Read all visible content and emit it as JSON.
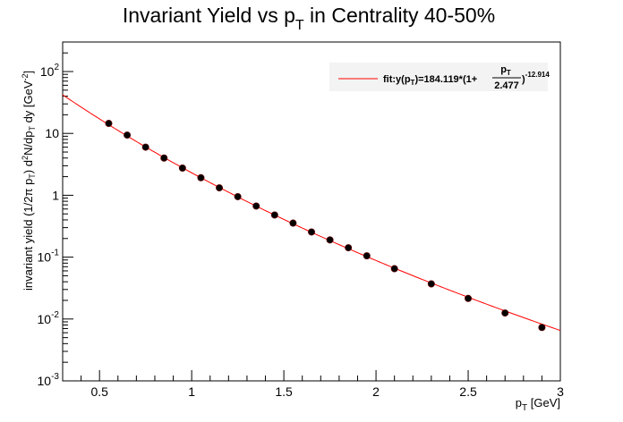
{
  "chart_data": {
    "type": "scatter",
    "title": "Invariant Yield vs p",
    "title_sub": "T",
    "title_tail": " in Centrality 40-50%",
    "xlabel": "p",
    "xlabel_sub": "T",
    "xlabel_tail": " [GeV]",
    "ylabel": "invariant yield (1/2π p",
    "ylabel_sub1": "T",
    "ylabel_mid1": ") d",
    "ylabel_sup1": "2",
    "ylabel_mid2": "N/dp",
    "ylabel_sub2": "T",
    "ylabel_tail": " dy [GeV",
    "ylabel_sup2": "-2",
    "ylabel_end": "]",
    "xlim": [
      0.3,
      3.0
    ],
    "ylim": [
      0.001,
      300
    ],
    "y_scale": "log",
    "x_ticks": [
      {
        "value": 0.5,
        "label": "0.5"
      },
      {
        "value": 1.0,
        "label": "1"
      },
      {
        "value": 1.5,
        "label": "1.5"
      },
      {
        "value": 2.0,
        "label": "2"
      },
      {
        "value": 2.5,
        "label": "2.5"
      },
      {
        "value": 3.0,
        "label": "3"
      }
    ],
    "y_ticks": [
      {
        "value": 0.001,
        "base": "10",
        "exp": "-3"
      },
      {
        "value": 0.01,
        "base": "10",
        "exp": "-2"
      },
      {
        "value": 0.1,
        "base": "10",
        "exp": "-1"
      },
      {
        "value": 1,
        "base": "1",
        "exp": ""
      },
      {
        "value": 10,
        "base": "10",
        "exp": ""
      },
      {
        "value": 100,
        "base": "10",
        "exp": "2"
      }
    ],
    "series": [
      {
        "color": "#000000",
        "x": [
          0.55,
          0.65,
          0.75,
          0.85,
          0.95,
          1.05,
          1.15,
          1.25,
          1.35,
          1.45,
          1.55,
          1.65,
          1.75,
          1.85,
          1.95,
          2.1,
          2.3,
          2.5,
          2.7,
          2.9
        ],
        "y": [
          14.5,
          9.4,
          6.0,
          4.0,
          2.75,
          1.92,
          1.32,
          0.95,
          0.67,
          0.48,
          0.355,
          0.255,
          0.19,
          0.142,
          0.105,
          0.065,
          0.037,
          0.0215,
          0.0125,
          0.0073
        ]
      }
    ],
    "fit": {
      "color": "#ff0000",
      "A": 184.119,
      "p0": 2.477,
      "n": 12.914,
      "legend_prefix": "fit:y(p",
      "legend_sub": "T",
      "legend_mid": ")=184.119*(1+",
      "legend_num": "p",
      "legend_num_sub": "T",
      "legend_den": "2.477",
      "legend_close": ")",
      "legend_exp": "-12.914"
    },
    "legend_position": "top-right",
    "grid": false
  }
}
